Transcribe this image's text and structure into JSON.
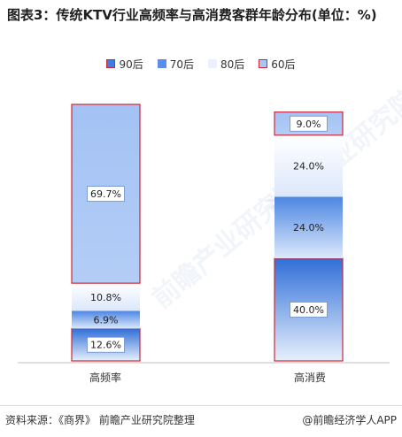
{
  "title": "图表3：传统KTV行业高频率与高消费客群年龄分布(单位：%)",
  "legend": [
    {
      "label": "90后",
      "color": "#cc2936",
      "fill": "#3f7ee0"
    },
    {
      "label": "70后",
      "color": "#5b8ee6",
      "fill": "#5b8ee6"
    },
    {
      "label": "80后",
      "color": "#d6e4fa",
      "fill": "#eaf1fc"
    },
    {
      "label": "60后",
      "color": "#cc2936",
      "fill": "#a9c6f5"
    }
  ],
  "chart_data": {
    "type": "bar",
    "stacked": true,
    "categories": [
      "高频率",
      "高消费"
    ],
    "series": [
      {
        "name": "90后",
        "values": [
          12.6,
          40.0
        ],
        "labels": [
          "12.6%",
          "40.0%"
        ]
      },
      {
        "name": "70后",
        "values": [
          6.9,
          24.0
        ],
        "labels": [
          "6.9%",
          "24.0%"
        ]
      },
      {
        "name": "80后",
        "values": [
          10.8,
          24.0
        ],
        "labels": [
          "10.8%",
          "24.0%"
        ]
      },
      {
        "name": "60后",
        "values": [
          69.7,
          9.0
        ],
        "labels": [
          "69.7%",
          "9.0%"
        ]
      }
    ],
    "legend_position": "top"
  },
  "footer": {
    "source": "资料来源：《商界》 前瞻产业研究院整理",
    "brand": "@前瞻经济学人APP"
  },
  "watermark": "前瞻产业研究院"
}
